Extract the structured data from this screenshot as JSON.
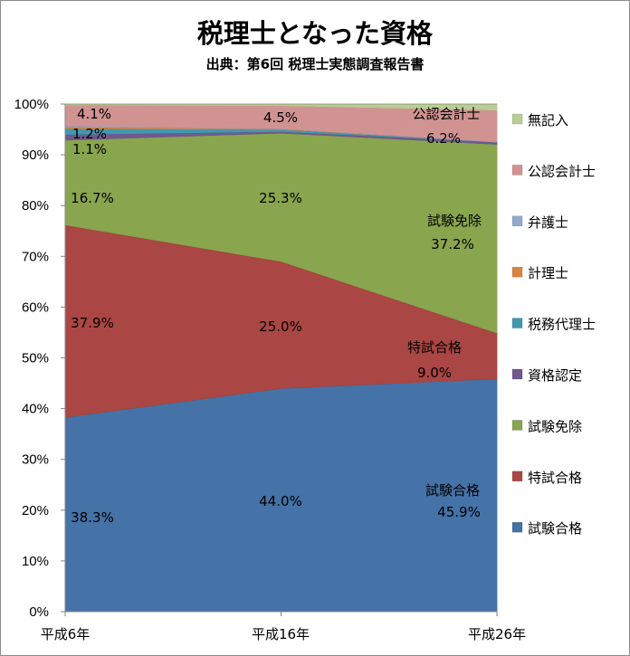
{
  "header": {
    "title": "税理士となった資格",
    "subtitle": "出典：第6回 税理士実態調査報告書"
  },
  "chart_data": {
    "type": "area",
    "stacked": "percent",
    "categories": [
      "平成6年",
      "平成16年",
      "平成26年"
    ],
    "y_ticks": [
      "0%",
      "10%",
      "20%",
      "30%",
      "40%",
      "50%",
      "60%",
      "70%",
      "80%",
      "90%",
      "100%"
    ],
    "ylim": [
      0,
      100
    ],
    "legend_position": "right",
    "series": [
      {
        "name": "試験合格",
        "color": "#4572a7",
        "values": [
          38.3,
          44.0,
          45.9
        ]
      },
      {
        "name": "特試合格",
        "color": "#aa4643",
        "values": [
          37.9,
          25.0,
          9.0
        ]
      },
      {
        "name": "試験免除",
        "color": "#89a54e",
        "values": [
          16.7,
          25.3,
          37.2
        ]
      },
      {
        "name": "資格認定",
        "color": "#71588f",
        "values": [
          1.1,
          0.3,
          0.4
        ]
      },
      {
        "name": "税務代理士",
        "color": "#4198af",
        "values": [
          1.2,
          0.4,
          0.0
        ]
      },
      {
        "name": "計理士",
        "color": "#db843d",
        "values": [
          0.3,
          0.1,
          0.0
        ]
      },
      {
        "name": "弁護士",
        "color": "#93a9cf",
        "values": [
          0.2,
          0.1,
          0.1
        ]
      },
      {
        "name": "公認会計士",
        "color": "#d19392",
        "values": [
          4.1,
          4.5,
          6.2
        ]
      },
      {
        "name": "無記入",
        "color": "#b9cd96",
        "values": [
          0.2,
          0.3,
          1.2
        ]
      }
    ],
    "data_labels": [
      {
        "text": "38.3%"
      },
      {
        "text": "44.0%"
      },
      {
        "text": "45.9%"
      },
      {
        "text": "37.9%"
      },
      {
        "text": "25.0%"
      },
      {
        "text": "9.0%"
      },
      {
        "text": "16.7%"
      },
      {
        "text": "25.3%"
      },
      {
        "text": "37.2%"
      },
      {
        "text": "1.1%"
      },
      {
        "text": "1.2%"
      },
      {
        "text": "4.1%"
      },
      {
        "text": "4.5%"
      },
      {
        "text": "6.2%"
      },
      {
        "text": "試験合格"
      },
      {
        "text": "特試合格"
      },
      {
        "text": "試験免除"
      },
      {
        "text": "公認会計士"
      }
    ],
    "legend": [
      "無記入",
      "公認会計士",
      "弁護士",
      "計理士",
      "税務代理士",
      "資格認定",
      "試験免除",
      "特試合格",
      "試験合格"
    ]
  }
}
